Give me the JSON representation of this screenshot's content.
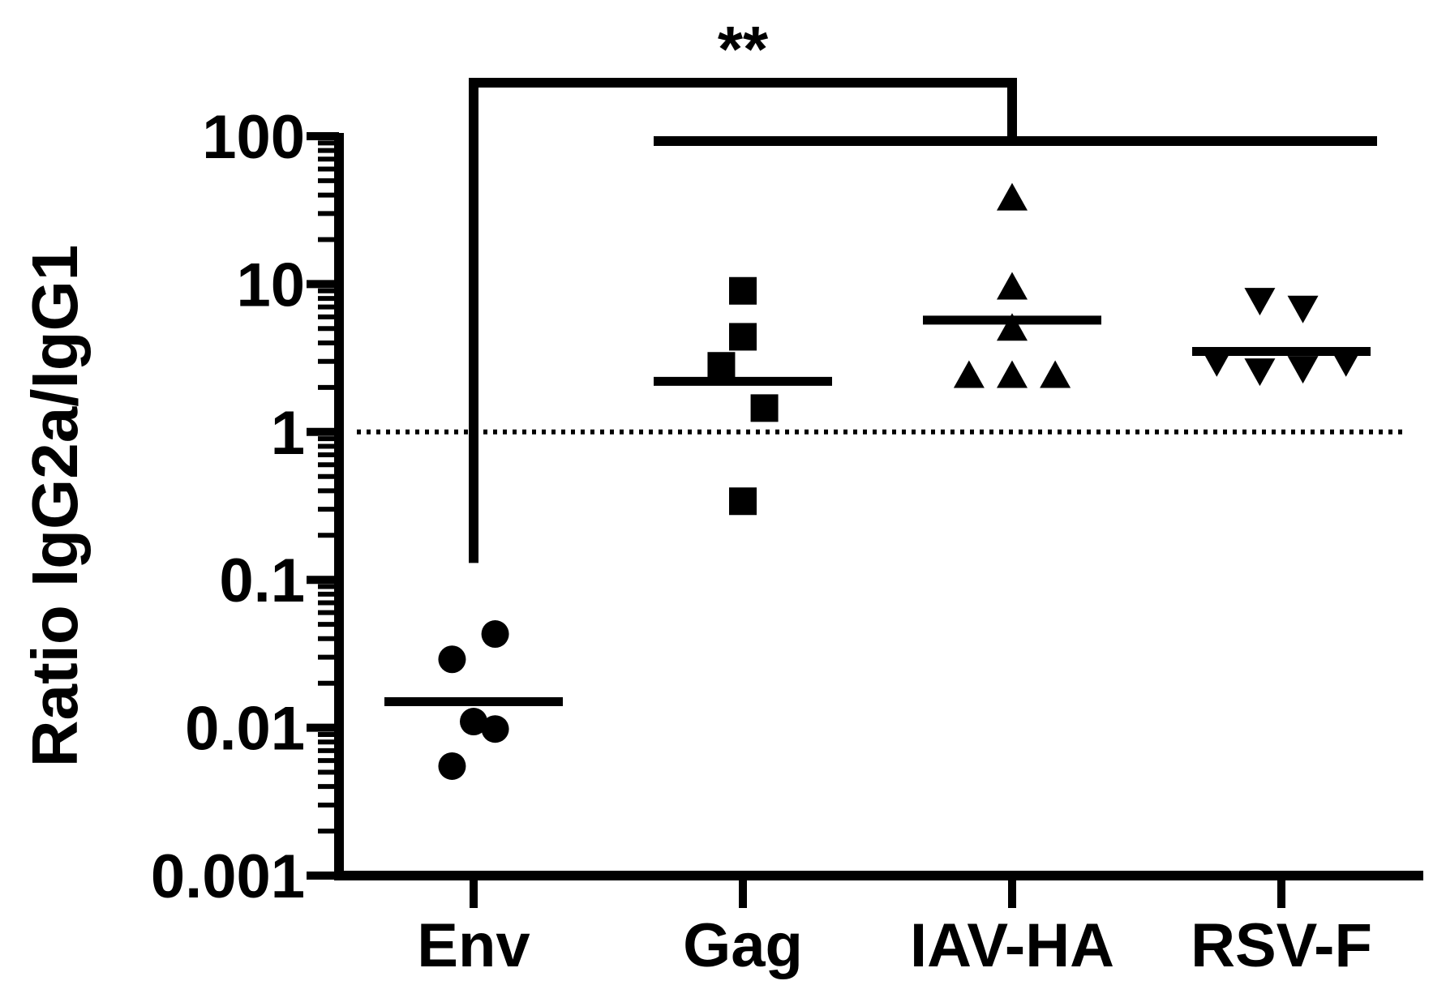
{
  "chart_data": {
    "type": "scatter",
    "ylabel": "Ratio IgG2a/IgG1",
    "yscale": "log",
    "ylim": [
      0.001,
      100
    ],
    "yticks": [
      {
        "value": 0.001,
        "label": "0.001"
      },
      {
        "value": 0.01,
        "label": "0.01"
      },
      {
        "value": 0.1,
        "label": "0.1"
      },
      {
        "value": 1,
        "label": "1"
      },
      {
        "value": 10,
        "label": "10"
      },
      {
        "value": 100,
        "label": "100"
      }
    ],
    "categories": [
      "Env",
      "Gag",
      "IAV-HA",
      "RSV-F"
    ],
    "reference_line": {
      "value": 1,
      "style": "dotted"
    },
    "series": [
      {
        "category": "Env",
        "marker": "circle",
        "mean": 0.015,
        "points": [
          {
            "y": 0.043,
            "dx": 0.08
          },
          {
            "y": 0.029,
            "dx": -0.08
          },
          {
            "y": 0.011,
            "dx": 0.0
          },
          {
            "y": 0.0098,
            "dx": 0.08
          },
          {
            "y": 0.0055,
            "dx": -0.08
          }
        ]
      },
      {
        "category": "Gag",
        "marker": "square",
        "mean": 2.2,
        "points": [
          {
            "y": 9.0,
            "dx": 0.0
          },
          {
            "y": 4.4,
            "dx": 0.0
          },
          {
            "y": 2.8,
            "dx": -0.08
          },
          {
            "y": 1.45,
            "dx": 0.08
          },
          {
            "y": 0.34,
            "dx": 0.0
          }
        ]
      },
      {
        "category": "IAV-HA",
        "marker": "triangle-up",
        "mean": 5.7,
        "points": [
          {
            "y": 38,
            "dx": 0.0
          },
          {
            "y": 9.5,
            "dx": 0.0
          },
          {
            "y": 5.0,
            "dx": 0.0
          },
          {
            "y": 2.4,
            "dx": -0.16
          },
          {
            "y": 2.4,
            "dx": 0.0
          },
          {
            "y": 2.4,
            "dx": 0.16
          }
        ]
      },
      {
        "category": "RSV-F",
        "marker": "triangle-down",
        "mean": 3.5,
        "points": [
          {
            "y": 7.8,
            "dx": -0.08
          },
          {
            "y": 6.9,
            "dx": 0.08
          },
          {
            "y": 3.0,
            "dx": -0.24
          },
          {
            "y": 2.6,
            "dx": -0.08
          },
          {
            "y": 2.7,
            "dx": 0.08
          },
          {
            "y": 3.0,
            "dx": 0.24
          }
        ]
      }
    ],
    "significance": {
      "label": "**",
      "from": "Env",
      "to": [
        "Gag",
        "IAV-HA",
        "RSV-F"
      ]
    },
    "grid": false,
    "legend": "none"
  }
}
